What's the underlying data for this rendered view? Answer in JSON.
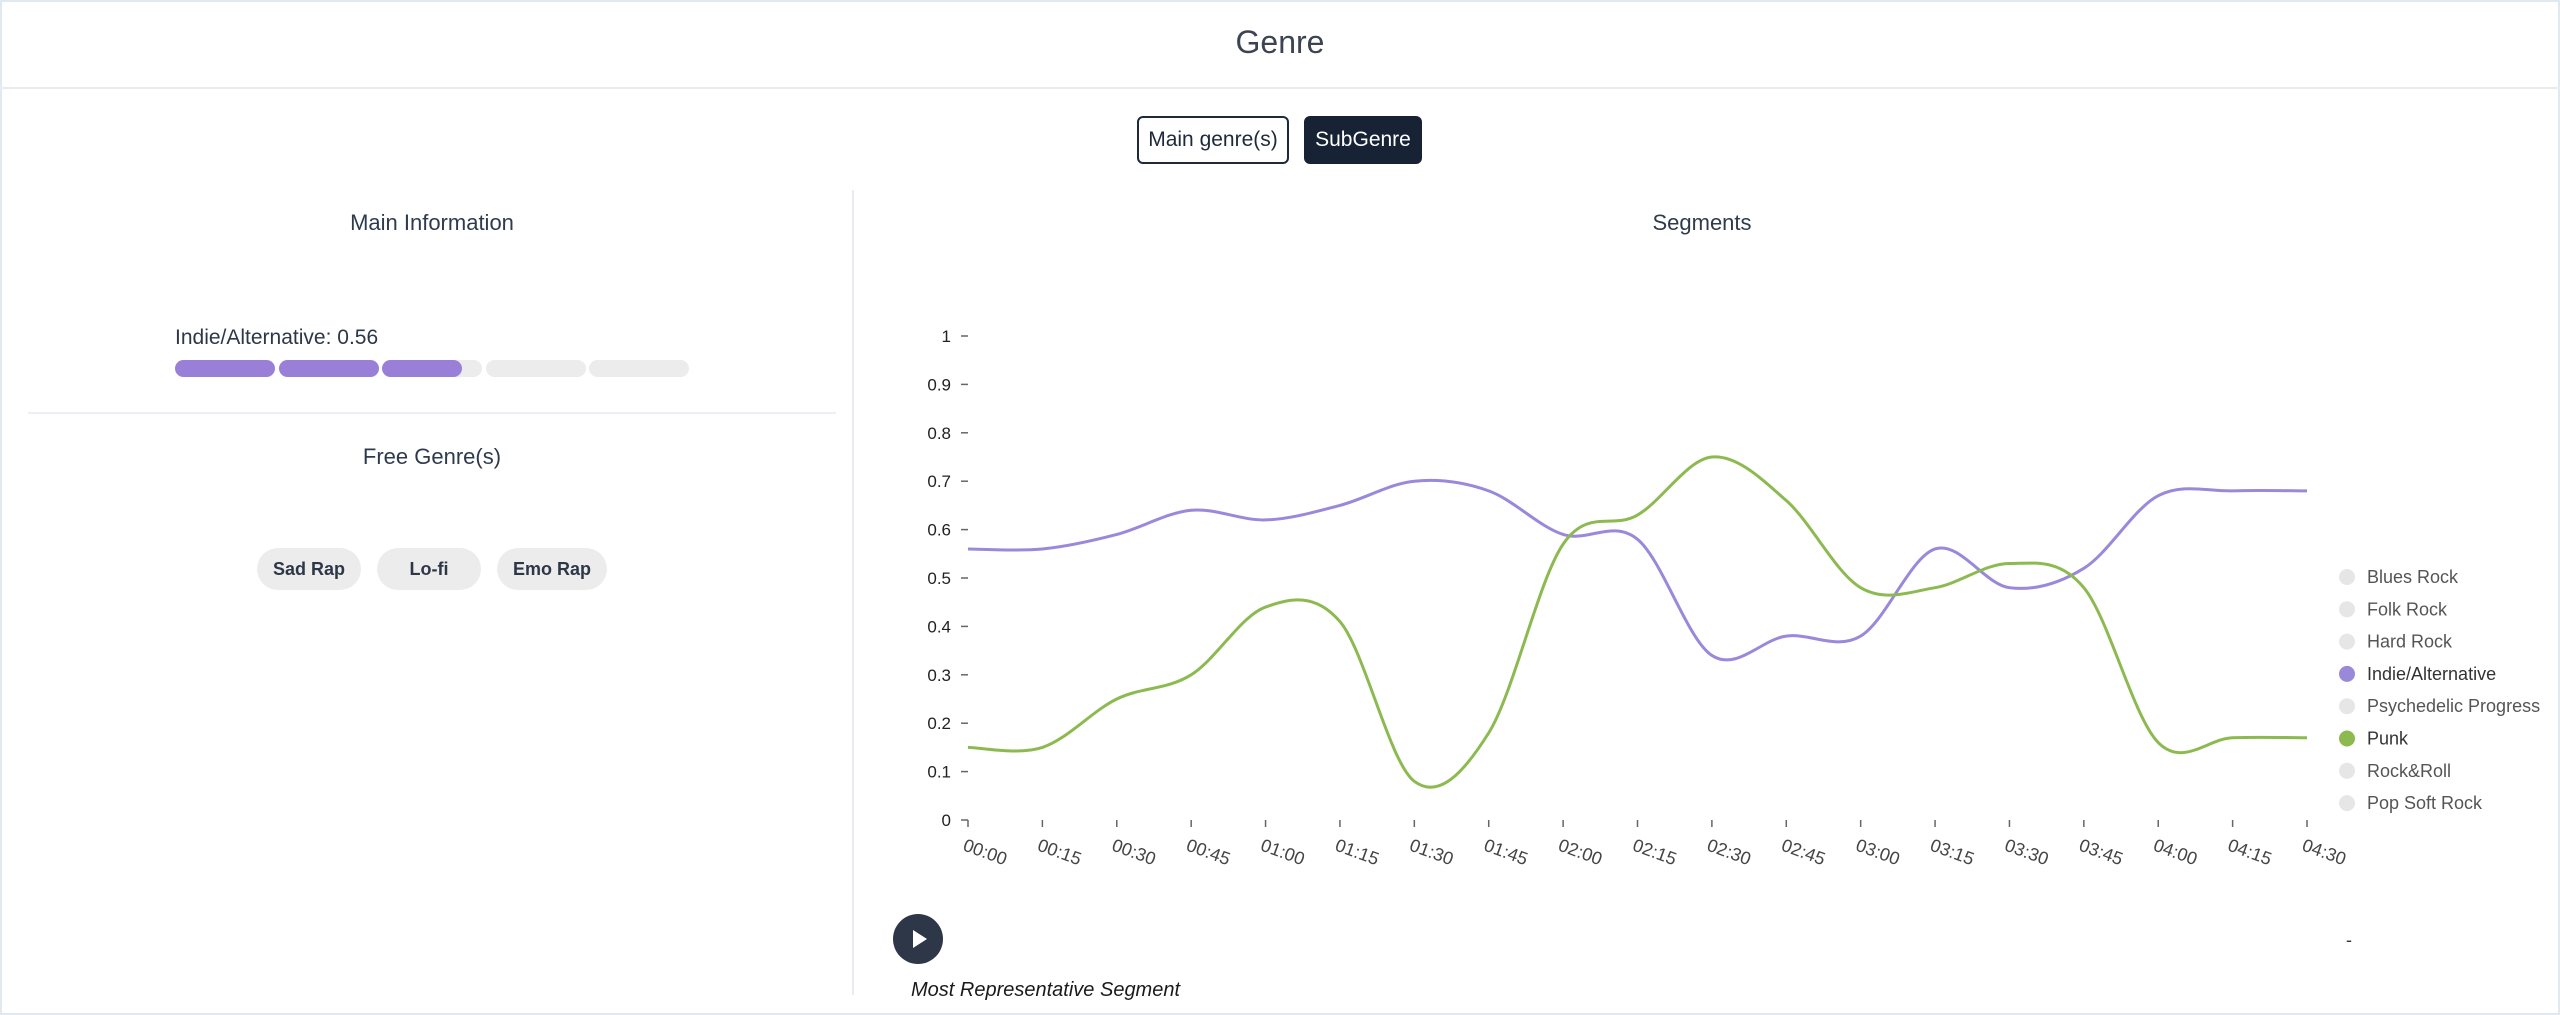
{
  "header": {
    "title": "Genre"
  },
  "toggles": {
    "main": "Main genre(s)",
    "sub": "SubGenre",
    "active": "sub"
  },
  "main_information": {
    "title": "Main Information",
    "genre": "Indie/Alternative",
    "separator": ": ",
    "score": "0.56",
    "score_value": 0.56,
    "segments_total": 5
  },
  "free_genres": {
    "title": "Free Genre(s)",
    "chips": [
      "Sad Rap",
      "Lo-fi",
      "Emo Rap"
    ]
  },
  "segments": {
    "title": "Segments",
    "most_representative_label": "Most Representative Segment",
    "dash": "-"
  },
  "colors": {
    "indie": "#9a88da",
    "punk": "#8cba50",
    "inactive_legend": "#e6e6e6",
    "dark": "#172335"
  },
  "chart_data": {
    "type": "line",
    "x": [
      "00:00",
      "00:15",
      "00:30",
      "00:45",
      "01:00",
      "01:15",
      "01:30",
      "01:45",
      "02:00",
      "02:15",
      "02:30",
      "02:45",
      "03:00",
      "03:15",
      "03:30",
      "03:45",
      "04:00",
      "04:15",
      "04:30"
    ],
    "yticks": [
      "0",
      "0.1",
      "0.2",
      "0.3",
      "0.4",
      "0.5",
      "0.6",
      "0.7",
      "0.8",
      "0.9",
      "1"
    ],
    "ylim": [
      0,
      1
    ],
    "legend_position": "right",
    "legend": [
      {
        "name": "Blues Rock",
        "active": false
      },
      {
        "name": "Folk Rock",
        "active": false
      },
      {
        "name": "Hard Rock",
        "active": false
      },
      {
        "name": "Indie/Alternative",
        "active": true,
        "color": "#9a88da"
      },
      {
        "name": "Psychedelic Progress",
        "active": false
      },
      {
        "name": "Punk",
        "active": true,
        "color": "#8cba50"
      },
      {
        "name": "Rock&Roll",
        "active": false
      },
      {
        "name": "Pop Soft Rock",
        "active": false
      }
    ],
    "series": [
      {
        "name": "Indie/Alternative",
        "color": "#9a88da",
        "values": [
          0.56,
          0.56,
          0.59,
          0.64,
          0.62,
          0.65,
          0.7,
          0.68,
          0.59,
          0.58,
          0.34,
          0.38,
          0.38,
          0.56,
          0.48,
          0.52,
          0.67,
          0.68,
          0.68
        ]
      },
      {
        "name": "Punk",
        "color": "#8cba50",
        "values": [
          0.15,
          0.15,
          0.25,
          0.3,
          0.44,
          0.41,
          0.08,
          0.18,
          0.57,
          0.63,
          0.75,
          0.66,
          0.48,
          0.48,
          0.53,
          0.48,
          0.16,
          0.17,
          0.17
        ]
      }
    ]
  }
}
